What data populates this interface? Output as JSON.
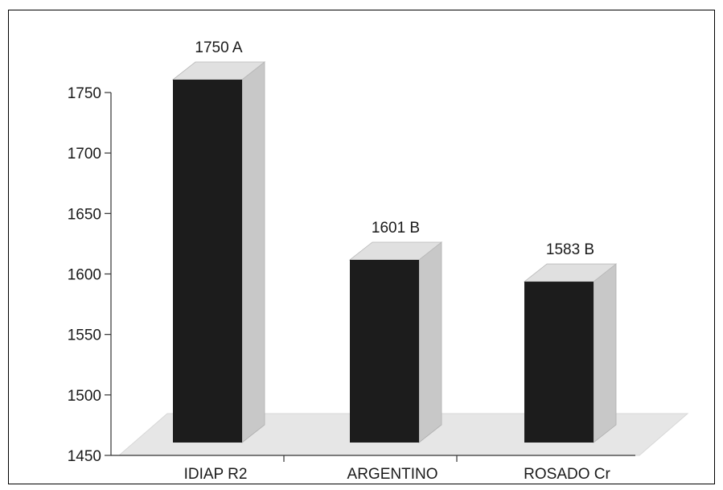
{
  "chart_data": {
    "type": "bar",
    "style": "3d",
    "categories": [
      "IDIAP R2",
      "ARGENTINO",
      "ROSADO Cr"
    ],
    "values": [
      1750,
      1601,
      1583
    ],
    "data_labels": [
      "1750 A",
      "1601 B",
      "1583 B"
    ],
    "title": "",
    "xlabel": "",
    "ylabel": "",
    "ylim": [
      1450,
      1750
    ],
    "yticks": [
      "1450",
      "1500",
      "1550",
      "1600",
      "1650",
      "1700",
      "1750"
    ],
    "grid": false,
    "legend": "none",
    "colors": {
      "bar_front": "#1c1c1c",
      "bar_side": "#c8c8c8",
      "bar_top": "#e0e0e0",
      "floor": "#e6e6e6"
    }
  }
}
